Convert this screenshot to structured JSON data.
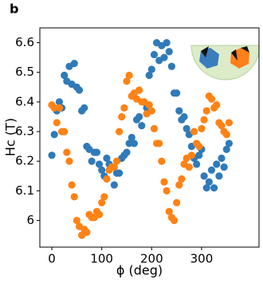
{
  "chart_data": {
    "type": "scatter",
    "panel_label": "b",
    "x_label": "ϕ (deg)",
    "y_label": "Hc (T)",
    "x": [
      0,
      5,
      10,
      15,
      20,
      25,
      30,
      35,
      40,
      45,
      50,
      55,
      60,
      65,
      70,
      75,
      80,
      85,
      90,
      95,
      100,
      105,
      110,
      115,
      120,
      125,
      130,
      135,
      140,
      145,
      150,
      155,
      160,
      165,
      170,
      175,
      180,
      185,
      190,
      195,
      200,
      205,
      210,
      215,
      220,
      225,
      230,
      235,
      240,
      245,
      250,
      255,
      260,
      265,
      270,
      275,
      280,
      285,
      290,
      295,
      300,
      305,
      310,
      315,
      320,
      325,
      330,
      335,
      340,
      345,
      350,
      355
    ],
    "series": [
      {
        "color": "#2f7ab9",
        "values": [
          6.22,
          6.29,
          6.37,
          6.4,
          6.38,
          6.49,
          6.47,
          6.52,
          6.46,
          6.53,
          6.45,
          6.44,
          6.37,
          6.38,
          6.25,
          6.24,
          6.2,
          6.23,
          6.23,
          6.19,
          6.17,
          6.15,
          6.21,
          6.19,
          6.18,
          6.12,
          6.16,
          6.16,
          6.21,
          6.22,
          6.23,
          6.26,
          6.28,
          6.26,
          6.34,
          6.35,
          6.32,
          6.4,
          6.38,
          6.49,
          6.51,
          6.56,
          6.6,
          6.54,
          6.59,
          6.55,
          6.6,
          6.57,
          6.52,
          6.43,
          6.43,
          6.37,
          6.34,
          6.35,
          6.31,
          6.29,
          6.25,
          6.21,
          6.19,
          6.22,
          6.24,
          6.15,
          6.11,
          6.13,
          6.17,
          6.11,
          6.19,
          6.15,
          6.21,
          6.18,
          6.24,
          6.26
        ]
      },
      {
        "color": "#ff8214",
        "values": [
          6.39,
          6.38,
          6.33,
          6.38,
          6.3,
          6.3,
          6.23,
          6.2,
          6.12,
          6.08,
          6.0,
          5.98,
          5.95,
          5.97,
          5.96,
          6.02,
          6.01,
          6.01,
          6.03,
          6.02,
          6.06,
          6.08,
          6.14,
          6.17,
          6.18,
          6.18,
          6.2,
          6.3,
          6.35,
          6.38,
          6.47,
          6.49,
          6.42,
          6.43,
          6.41,
          6.44,
          6.4,
          6.4,
          6.36,
          6.39,
          6.37,
          6.31,
          6.26,
          6.26,
          6.2,
          6.13,
          6.1,
          6.03,
          6.01,
          6.0,
          6.06,
          6.12,
          6.14,
          6.19,
          6.21,
          6.18,
          6.22,
          6.3,
          6.26,
          6.25,
          6.31,
          6.34,
          6.37,
          6.42,
          6.41,
          6.38,
          6.39,
          6.33,
          6.32,
          6.3,
          6.29,
          6.33
        ]
      }
    ],
    "xlim": [
      -24,
      415
    ],
    "ylim": [
      5.91,
      6.65
    ],
    "xticks": [
      0,
      100,
      200,
      300
    ],
    "yticks": [
      6.0,
      6.1,
      6.2,
      6.3,
      6.4,
      6.5,
      6.6
    ]
  }
}
